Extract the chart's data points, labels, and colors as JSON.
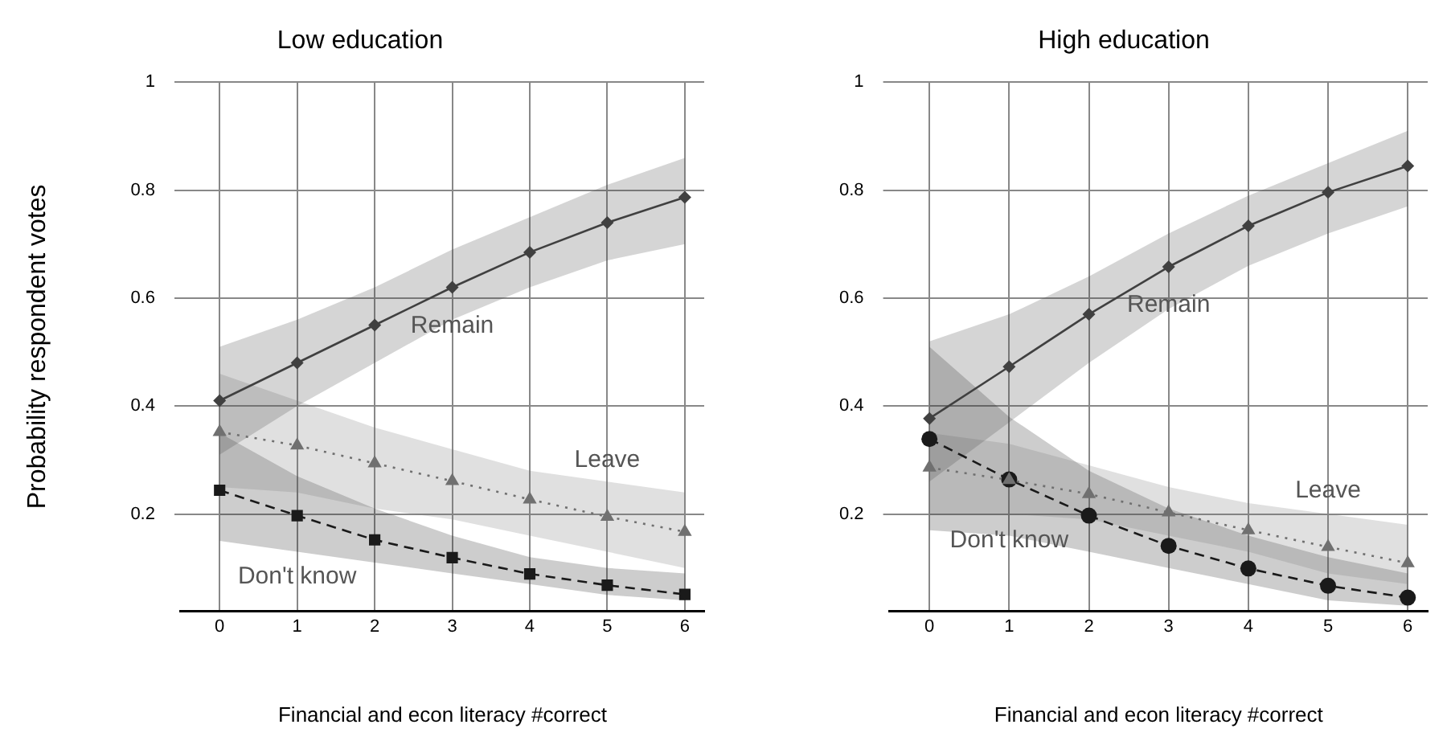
{
  "chart_data": [
    {
      "type": "line",
      "title": "Low education",
      "xlabel": "Financial and econ literacy #correct",
      "ylabel": "Probability respondent votes",
      "x": [
        0,
        1,
        2,
        3,
        4,
        5,
        6
      ],
      "xlim": [
        -0.5,
        6.25
      ],
      "xticks": [
        0,
        1,
        2,
        3,
        4,
        5,
        6
      ],
      "ylim": [
        0.02,
        1
      ],
      "yticks": [
        0.2,
        0.4,
        0.6,
        0.8,
        1
      ],
      "grid": true,
      "legend": false,
      "series": [
        {
          "name": "Remain",
          "color": "#404040",
          "marker": "diamond",
          "line_style": "solid",
          "values": [
            0.41,
            0.48,
            0.55,
            0.62,
            0.685,
            0.74,
            0.787
          ],
          "lower": [
            0.31,
            0.4,
            0.48,
            0.56,
            0.62,
            0.67,
            0.7
          ],
          "upper": [
            0.51,
            0.56,
            0.62,
            0.69,
            0.75,
            0.81,
            0.86
          ]
        },
        {
          "name": "Leave",
          "color": "#707070",
          "marker": "triangle",
          "line_style": "dotted",
          "values": [
            0.352,
            0.327,
            0.294,
            0.261,
            0.227,
            0.195,
            0.167
          ],
          "lower": [
            0.25,
            0.24,
            0.21,
            0.19,
            0.16,
            0.13,
            0.1
          ],
          "upper": [
            0.46,
            0.41,
            0.36,
            0.32,
            0.28,
            0.26,
            0.24
          ]
        },
        {
          "name": "Don't know",
          "color": "#1a1a1a",
          "marker": "square",
          "line_style": "dashed",
          "values": [
            0.244,
            0.197,
            0.152,
            0.119,
            0.089,
            0.068,
            0.051
          ],
          "lower": [
            0.15,
            0.13,
            0.11,
            0.09,
            0.07,
            0.05,
            0.04
          ],
          "upper": [
            0.35,
            0.27,
            0.21,
            0.16,
            0.12,
            0.1,
            0.09
          ]
        }
      ]
    },
    {
      "type": "line",
      "title": "High education",
      "xlabel": "Financial and econ literacy #correct",
      "x": [
        0,
        1,
        2,
        3,
        4,
        5,
        6
      ],
      "xlim": [
        -0.5,
        6.25
      ],
      "xticks": [
        0,
        1,
        2,
        3,
        4,
        5,
        6
      ],
      "ylim": [
        0.02,
        1
      ],
      "yticks": [
        0.2,
        0.4,
        0.6,
        0.8,
        1
      ],
      "grid": true,
      "legend": false,
      "series": [
        {
          "name": "Remain",
          "color": "#404040",
          "marker": "diamond",
          "line_style": "solid",
          "values": [
            0.377,
            0.473,
            0.57,
            0.658,
            0.734,
            0.796,
            0.845
          ],
          "lower": [
            0.26,
            0.37,
            0.48,
            0.58,
            0.66,
            0.72,
            0.77
          ],
          "upper": [
            0.52,
            0.57,
            0.64,
            0.72,
            0.79,
            0.85,
            0.91
          ]
        },
        {
          "name": "Leave",
          "color": "#707070",
          "marker": "triangle",
          "line_style": "dotted",
          "values": [
            0.286,
            0.263,
            0.237,
            0.203,
            0.17,
            0.139,
            0.109
          ],
          "lower": [
            0.2,
            0.2,
            0.19,
            0.16,
            0.13,
            0.09,
            0.07
          ],
          "upper": [
            0.35,
            0.33,
            0.29,
            0.25,
            0.22,
            0.2,
            0.18
          ]
        },
        {
          "name": "Don't know",
          "color": "#1a1a1a",
          "marker": "circle",
          "line_style": "dashed",
          "values": [
            0.339,
            0.264,
            0.197,
            0.141,
            0.099,
            0.067,
            0.045
          ],
          "lower": [
            0.17,
            0.16,
            0.13,
            0.1,
            0.07,
            0.04,
            0.03
          ],
          "upper": [
            0.51,
            0.38,
            0.28,
            0.21,
            0.16,
            0.12,
            0.09
          ]
        }
      ]
    }
  ]
}
